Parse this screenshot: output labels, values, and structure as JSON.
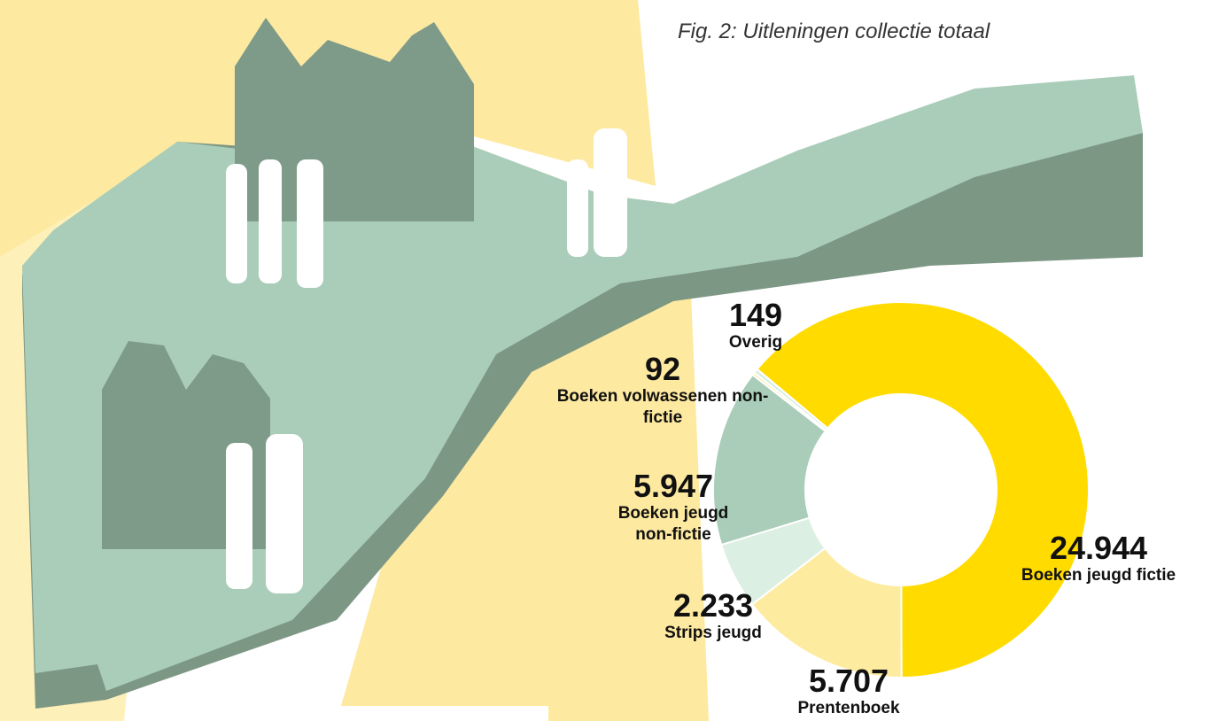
{
  "chart_data": {
    "type": "donut",
    "title": "Fig. 2: Uitleningen collectie totaal",
    "categories": [
      "Boeken jeugd fictie",
      "Prentenboek",
      "Strips jeugd",
      "Boeken jeugd non-fictie",
      "Boeken volwassenen non-fictie",
      "Overig"
    ],
    "values": [
      24944,
      5707,
      2233,
      5947,
      92,
      149
    ],
    "value_labels": [
      "24.944",
      "5.707",
      "2.233",
      "5.947",
      "92",
      "149"
    ],
    "colors": [
      "#ffdb00",
      "#fdeba0",
      "#dcefe3",
      "#aacdb9",
      "#fdeba0",
      "#dcefe3"
    ]
  }
}
